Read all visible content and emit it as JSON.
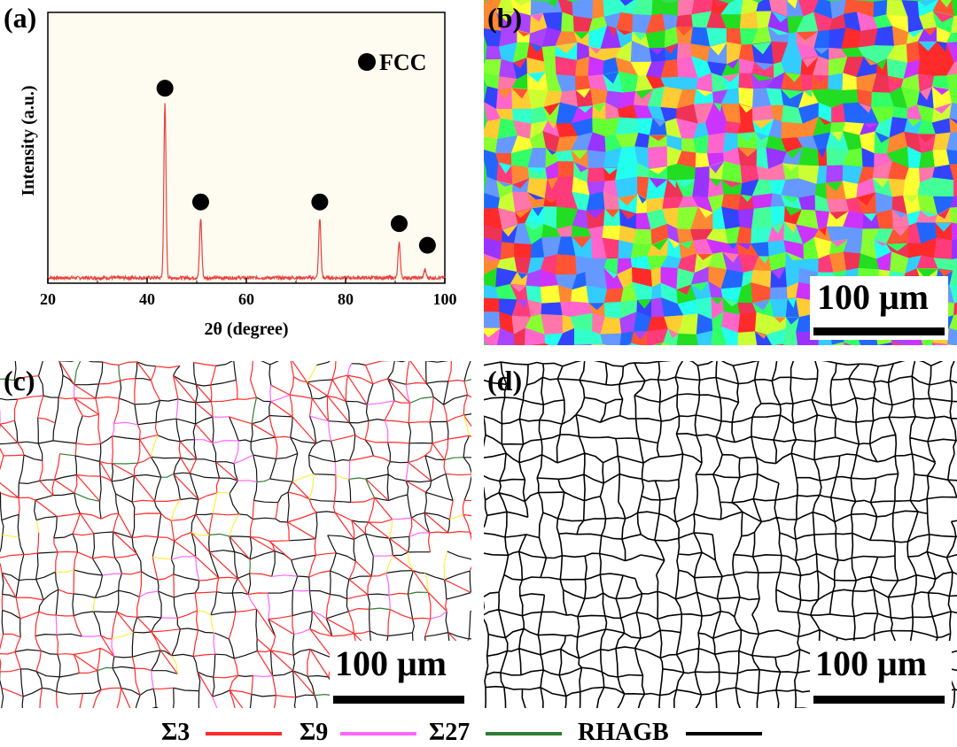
{
  "panels": {
    "a": {
      "label": "(a)"
    },
    "b": {
      "label": "(b)",
      "scalebar": "100 μm"
    },
    "c": {
      "label": "(c)",
      "scalebar": "100 μm"
    },
    "d": {
      "label": "(d)",
      "scalebar": "100 μm"
    }
  },
  "chart_data": {
    "type": "line",
    "xlabel": "2θ (degree)",
    "ylabel": "Intensity (a.u.)",
    "xlim": [
      20,
      100
    ],
    "xticks": [
      20,
      40,
      60,
      80,
      100
    ],
    "legend": {
      "label": "FCC",
      "marker": "filled-circle",
      "placement": "top-right"
    },
    "series": [
      {
        "color": "#e8413e",
        "peaks": [
          {
            "x": 43.6,
            "y": 0.64
          },
          {
            "x": 50.8,
            "y": 0.22
          },
          {
            "x": 74.8,
            "y": 0.22
          },
          {
            "x": 90.8,
            "y": 0.13
          },
          {
            "x": 96.0,
            "y": 0.03
          }
        ],
        "baseline": 0.02
      }
    ],
    "markers": [
      {
        "x": 43.6,
        "y": 0.72
      },
      {
        "x": 50.8,
        "y": 0.3
      },
      {
        "x": 74.8,
        "y": 0.3
      },
      {
        "x": 90.8,
        "y": 0.22
      },
      {
        "x": 96.5,
        "y": 0.14
      }
    ],
    "ylim": [
      0,
      1
    ],
    "background": "#fefcf1"
  },
  "legend": [
    {
      "label": "Σ3",
      "color": "#ff2a2a"
    },
    {
      "label": "Σ9",
      "color": "#ff66ff"
    },
    {
      "label": "Σ27",
      "color": "#2e7d32"
    },
    {
      "label": "RHAGB",
      "color": "#000000"
    }
  ]
}
